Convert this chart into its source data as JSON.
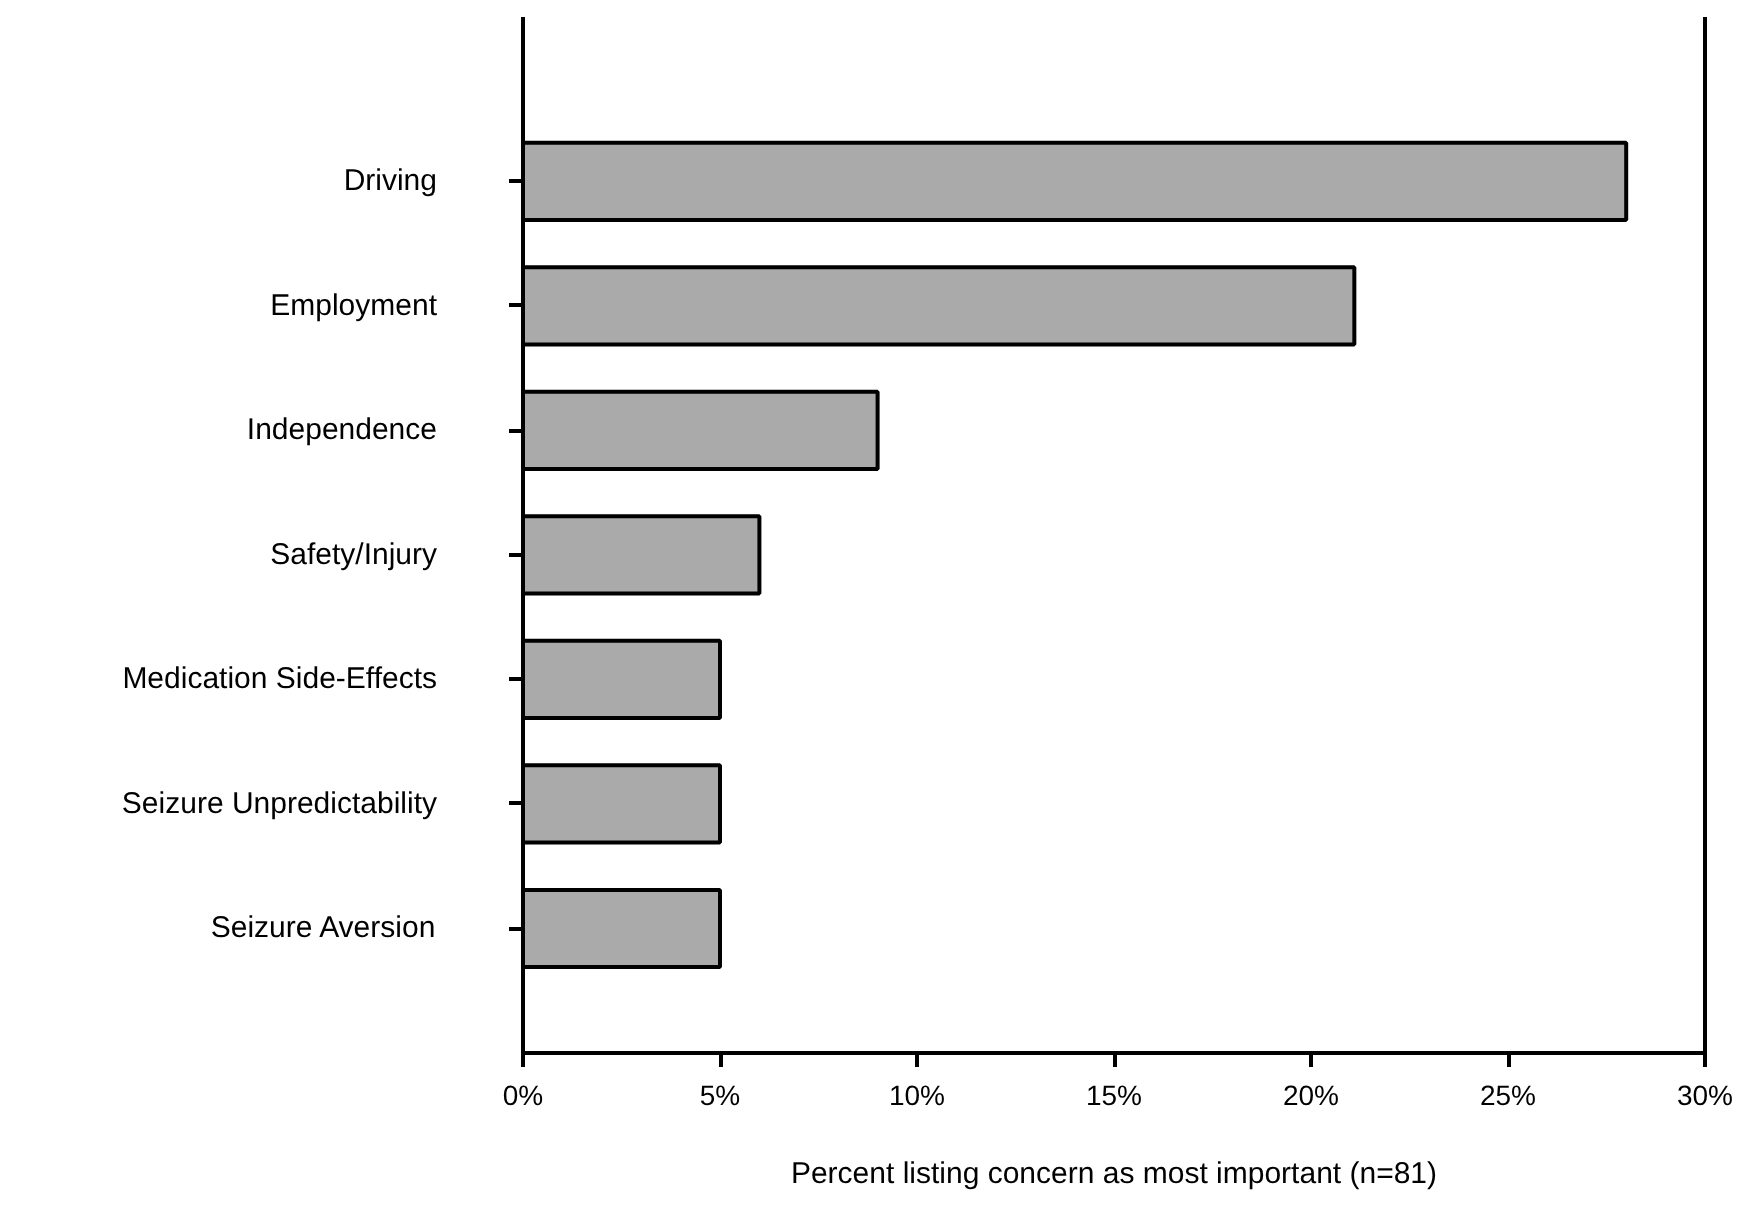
{
  "chart_data": {
    "type": "bar",
    "orientation": "horizontal",
    "categories": [
      "Driving",
      "Employment",
      "Independence",
      "Safety/Injury",
      "Medication Side-Effects",
      "Seizure Unpredictability",
      "Seizure Aversion"
    ],
    "values": [
      28.0,
      21.1,
      9.0,
      6.0,
      5.0,
      5.0,
      5.0
    ],
    "color": "#aaaaaa",
    "xlabel": "Percent listing concern as most important (n=81)",
    "xlim": [
      0,
      30
    ],
    "xticks": [
      {
        "value": 0,
        "label": "0%"
      },
      {
        "value": 5,
        "label": "5%"
      },
      {
        "value": 10,
        "label": "10%"
      },
      {
        "value": 15,
        "label": "15%"
      },
      {
        "value": 20,
        "label": "20%"
      },
      {
        "value": 25,
        "label": "25%"
      },
      {
        "value": 30,
        "label": "30%"
      }
    ],
    "grid": false
  }
}
